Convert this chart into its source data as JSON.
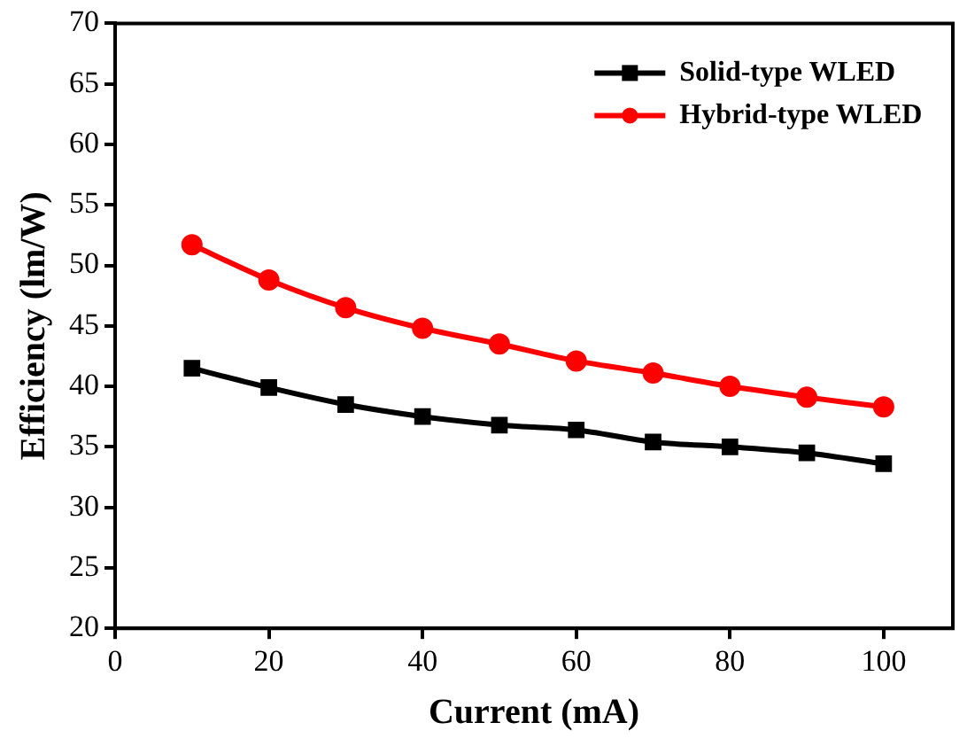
{
  "chart_data": {
    "type": "line",
    "xlabel": "Current (mA)",
    "ylabel": "Efficiency (lm/W)",
    "x": [
      10,
      20,
      30,
      40,
      50,
      60,
      70,
      80,
      90,
      100
    ],
    "series": [
      {
        "name": "Solid-type WLED",
        "color": "#000000",
        "marker": "square",
        "values": [
          41.5,
          39.9,
          38.5,
          37.5,
          36.8,
          36.4,
          35.4,
          35.0,
          34.5,
          33.6
        ]
      },
      {
        "name": "Hybrid-type WLED",
        "color": "#ff0000",
        "marker": "circle",
        "values": [
          51.7,
          48.8,
          46.5,
          44.8,
          43.5,
          42.1,
          41.1,
          40.0,
          39.1,
          38.3
        ]
      }
    ],
    "xlim": [
      0,
      109
    ],
    "xticks": [
      0,
      20,
      40,
      60,
      80,
      100
    ],
    "ylim": [
      20,
      70
    ],
    "yticks": [
      20,
      25,
      30,
      35,
      40,
      45,
      50,
      55,
      60,
      65,
      70
    ],
    "grid": false,
    "legend": "top right"
  }
}
